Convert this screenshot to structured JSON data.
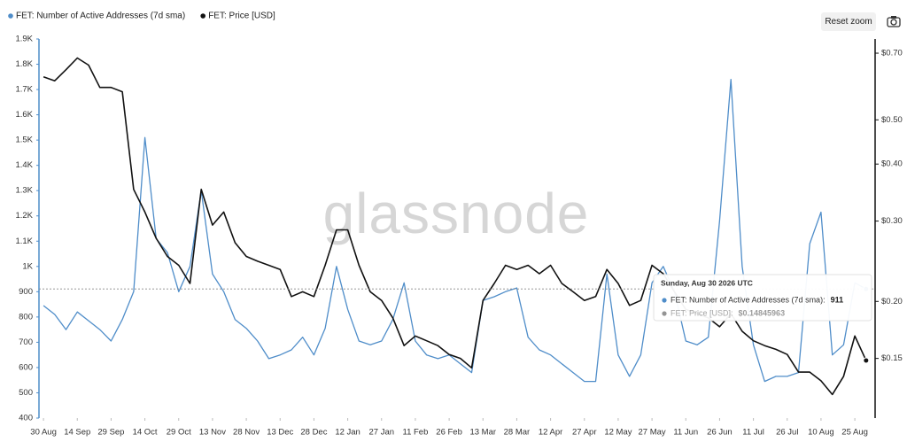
{
  "chart_data": {
    "type": "line",
    "legend": "top-left",
    "grid": false,
    "watermark": "glassnode",
    "y2log": true,
    "series": [
      {
        "name": "FET: Number of Active Addresses (7d sma)",
        "color": "#4f8dc9",
        "values": [
          845,
          810,
          750,
          820,
          785,
          750,
          705,
          790,
          900,
          1510,
          1110,
          1055,
          900,
          1000,
          1300,
          970,
          900,
          790,
          755,
          705,
          635,
          650,
          670,
          720,
          650,
          755,
          1000,
          830,
          705,
          690,
          705,
          790,
          935,
          705,
          650,
          635,
          650,
          615,
          580,
          865,
          880,
          900,
          915,
          720,
          670,
          650,
          615,
          580,
          545,
          545,
          970,
          650,
          565,
          650,
          935,
          1000,
          900,
          705,
          690,
          720,
          1180,
          1740,
          1000,
          690,
          545,
          565,
          565,
          580,
          1090,
          1215,
          650,
          690,
          935,
          911
        ]
      },
      {
        "name": "FET: Price [USD]",
        "color": "#111111",
        "axis": "y2",
        "values": [
          0.621,
          0.609,
          0.644,
          0.683,
          0.659,
          0.589,
          0.589,
          0.576,
          0.352,
          0.314,
          0.275,
          0.251,
          0.24,
          0.219,
          0.352,
          0.294,
          0.314,
          0.269,
          0.251,
          0.245,
          0.24,
          0.235,
          0.205,
          0.21,
          0.205,
          0.24,
          0.287,
          0.287,
          0.24,
          0.21,
          0.201,
          0.184,
          0.16,
          0.168,
          0.164,
          0.16,
          0.153,
          0.15,
          0.143,
          0.201,
          0.219,
          0.24,
          0.235,
          0.24,
          0.23,
          0.24,
          0.219,
          0.21,
          0.201,
          0.205,
          0.235,
          0.219,
          0.196,
          0.201,
          0.24,
          0.23,
          0.21,
          0.192,
          0.188,
          0.184,
          0.176,
          0.188,
          0.172,
          0.164,
          0.16,
          0.157,
          0.153,
          0.14,
          0.14,
          0.134,
          0.125,
          0.137,
          0.168,
          0.14845963
        ]
      }
    ],
    "x": [
      0,
      5,
      10,
      15,
      20,
      25,
      30,
      35,
      40,
      45,
      50,
      55,
      60,
      65,
      70,
      75,
      80,
      85,
      90,
      95,
      100,
      105,
      110,
      115,
      120,
      125,
      130,
      135,
      140,
      145,
      150,
      155,
      160,
      165,
      170,
      175,
      180,
      185,
      190,
      195,
      200,
      205,
      210,
      215,
      220,
      225,
      230,
      235,
      240,
      245,
      250,
      255,
      260,
      265,
      270,
      275,
      280,
      285,
      290,
      295,
      300,
      305,
      310,
      315,
      320,
      325,
      330,
      335,
      340,
      345,
      350,
      355,
      360,
      365
    ],
    "xlim": [
      -2,
      369
    ],
    "xticks": [
      {
        "value": 0,
        "label": "30 Aug"
      },
      {
        "value": 15,
        "label": "14 Sep"
      },
      {
        "value": 30,
        "label": "29 Sep"
      },
      {
        "value": 45,
        "label": "14 Oct"
      },
      {
        "value": 60,
        "label": "29 Oct"
      },
      {
        "value": 75,
        "label": "13 Nov"
      },
      {
        "value": 90,
        "label": "28 Nov"
      },
      {
        "value": 105,
        "label": "13 Dec"
      },
      {
        "value": 120,
        "label": "28 Dec"
      },
      {
        "value": 135,
        "label": "12 Jan"
      },
      {
        "value": 150,
        "label": "27 Jan"
      },
      {
        "value": 165,
        "label": "11 Feb"
      },
      {
        "value": 180,
        "label": "26 Feb"
      },
      {
        "value": 195,
        "label": "13 Mar"
      },
      {
        "value": 210,
        "label": "28 Mar"
      },
      {
        "value": 225,
        "label": "12 Apr"
      },
      {
        "value": 240,
        "label": "27 Apr"
      },
      {
        "value": 255,
        "label": "12 May"
      },
      {
        "value": 270,
        "label": "27 May"
      },
      {
        "value": 285,
        "label": "11 Jun"
      },
      {
        "value": 300,
        "label": "26 Jun"
      },
      {
        "value": 315,
        "label": "11 Jul"
      },
      {
        "value": 330,
        "label": "26 Jul"
      },
      {
        "value": 345,
        "label": "10 Aug"
      },
      {
        "value": 360,
        "label": "25 Aug"
      }
    ],
    "ylim": [
      400,
      1900
    ],
    "yticks": [
      400,
      500,
      600,
      700,
      800,
      900,
      {
        "value": 1000,
        "label": "1K"
      },
      {
        "value": 1100,
        "label": "1.1K"
      },
      {
        "value": 1200,
        "label": "1.2K"
      },
      {
        "value": 1300,
        "label": "1.3K"
      },
      {
        "value": 1400,
        "label": "1.4K"
      },
      {
        "value": 1500,
        "label": "1.5K"
      },
      {
        "value": 1600,
        "label": "1.6K"
      },
      {
        "value": 1700,
        "label": "1.7K"
      },
      {
        "value": 1800,
        "label": "1.8K"
      },
      {
        "value": 1900,
        "label": "1.9K"
      }
    ],
    "y2lim": [
      0.111,
      0.752
    ],
    "y2ticks": [
      {
        "value": 0.15,
        "label": "$0.15"
      },
      {
        "value": 0.2,
        "label": "$0.20"
      },
      {
        "value": 0.3,
        "label": "$0.30"
      },
      {
        "value": 0.4,
        "label": "$0.40"
      },
      {
        "value": 0.5,
        "label": "$0.50"
      },
      {
        "value": 0.7,
        "label": "$0.70"
      }
    ],
    "tooltip": {
      "title": "Sunday, Aug 30 2026 UTC",
      "rows": [
        {
          "label": "FET: Number of Active Addresses (7d sma):",
          "value": "911"
        },
        {
          "label": "FET: Price [USD]:",
          "value": "$0.14845963"
        }
      ]
    }
  },
  "toolbar": {
    "reset_zoom": "Reset zoom"
  }
}
